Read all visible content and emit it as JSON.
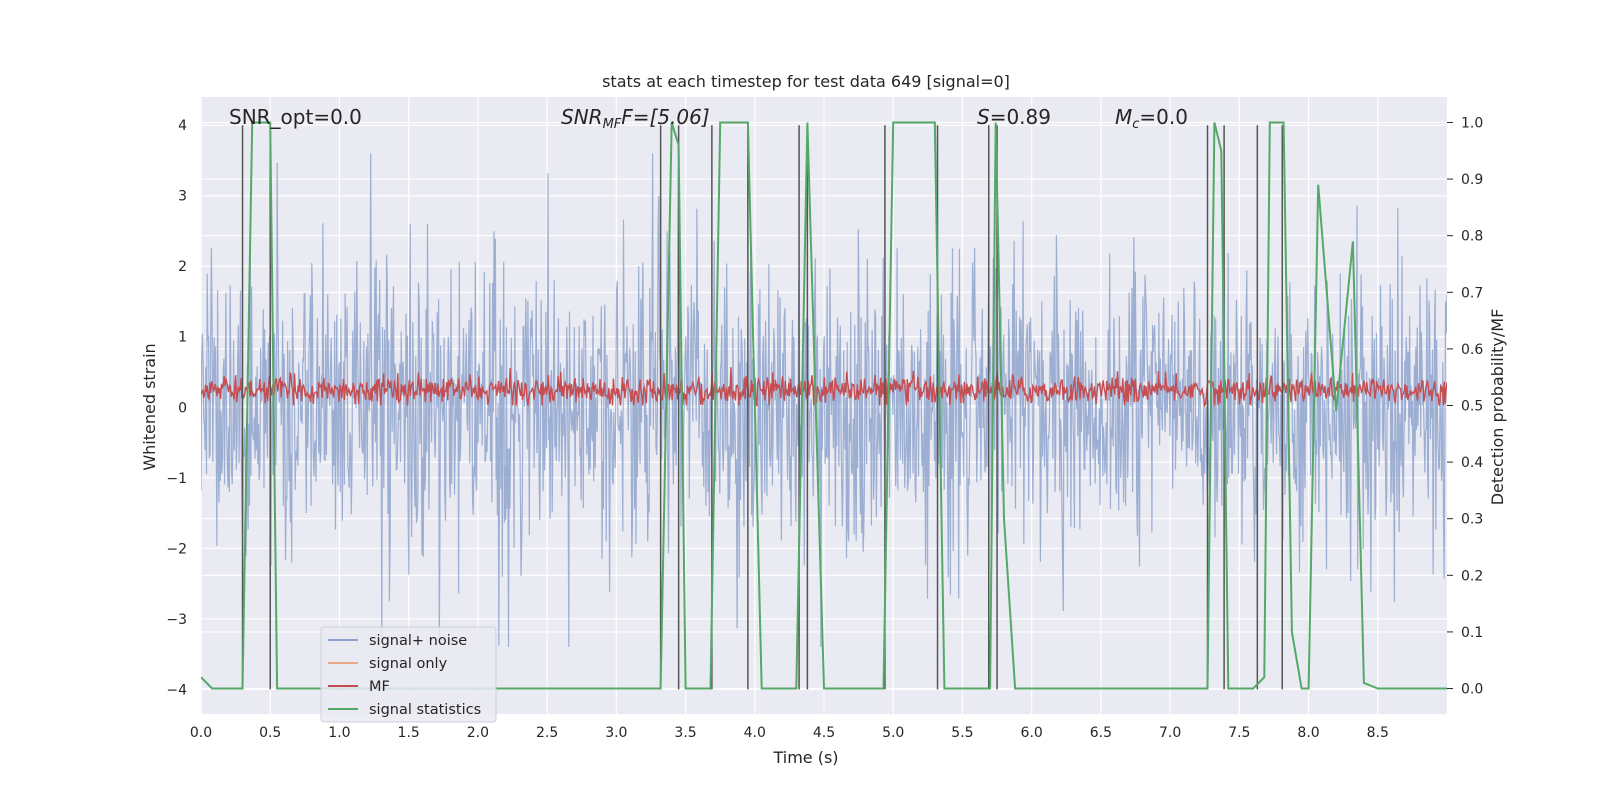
{
  "chart_data": {
    "type": "line",
    "title": "stats at each timestep for test data 649 [signal=0]",
    "xlabel": "Time (s)",
    "ylabel": "Whitened strain",
    "ylabel_right": "Detection probability/MF",
    "xlim": [
      0,
      9.0
    ],
    "ylim": [
      -4.35,
      4.4
    ],
    "ylim_right": [
      -0.045,
      1.045
    ],
    "x_ticks": [
      0.0,
      0.5,
      1.0,
      1.5,
      2.0,
      2.5,
      3.0,
      3.5,
      4.0,
      4.5,
      5.0,
      5.5,
      6.0,
      6.5,
      7.0,
      7.5,
      8.0,
      8.5
    ],
    "x_tick_labels": [
      "0.0",
      "0.5",
      "1.0",
      "1.5",
      "2.0",
      "2.5",
      "3.0",
      "3.5",
      "4.0",
      "4.5",
      "5.0",
      "5.5",
      "6.0",
      "6.5",
      "7.0",
      "7.5",
      "8.0",
      "8.5"
    ],
    "y_ticks": [
      4,
      3,
      2,
      1,
      0,
      -1,
      -2,
      -3,
      -4
    ],
    "y_tick_labels": [
      "4",
      "3",
      "2",
      "1",
      "0",
      "−1",
      "−2",
      "−3",
      "−4"
    ],
    "y_ticks_right": [
      1.0,
      0.9,
      0.8,
      0.7,
      0.6,
      0.5,
      0.4,
      0.3,
      0.2,
      0.1,
      0.0
    ],
    "y_tick_labels_right": [
      "1.0",
      "0.9",
      "0.8",
      "0.7",
      "0.6",
      "0.5",
      "0.4",
      "0.3",
      "0.2",
      "0.1",
      "0.0"
    ],
    "grid": true,
    "legend_position": "lower-left",
    "annotations": {
      "snr_opt": "SNR_opt=0.0",
      "snr_mf_label": "SNR",
      "snr_mf_sub": "MF",
      "snr_mf_value": "F=[5.06]",
      "s_label": "S",
      "s_value": "=0.89",
      "mc_label": "M",
      "mc_sub": "c",
      "mc_value": "=0.0"
    },
    "series": [
      {
        "name": "signal+ noise",
        "color": "#8ea3cc",
        "axis": "left",
        "note": "dense noise trace, roughly ±2 with spikes to ±3.5",
        "amplitude_range": [
          -3.4,
          3.6
        ]
      },
      {
        "name": "signal only",
        "color": "#e8a98a",
        "axis": "left",
        "values": []
      },
      {
        "name": "MF",
        "color": "#c44e52",
        "axis": "right",
        "note": "matched-filter output fluctuating around 0.53 on the right axis",
        "range_right": [
          0.5,
          0.6
        ]
      },
      {
        "name": "signal statistics",
        "color": "#55a868",
        "axis": "right",
        "points": [
          [
            0.0,
            0.02
          ],
          [
            0.08,
            0.0
          ],
          [
            0.15,
            0.0
          ],
          [
            0.3,
            0.0
          ],
          [
            0.37,
            1.0
          ],
          [
            0.5,
            1.0
          ],
          [
            0.55,
            0.0
          ],
          [
            3.32,
            0.0
          ],
          [
            3.4,
            1.0
          ],
          [
            3.45,
            0.96
          ],
          [
            3.5,
            0.0
          ],
          [
            3.68,
            0.0
          ],
          [
            3.75,
            1.0
          ],
          [
            3.95,
            1.0
          ],
          [
            4.05,
            0.0
          ],
          [
            4.3,
            0.0
          ],
          [
            4.38,
            1.0
          ],
          [
            4.5,
            0.0
          ],
          [
            4.93,
            0.0
          ],
          [
            5.0,
            1.0
          ],
          [
            5.3,
            1.0
          ],
          [
            5.37,
            0.0
          ],
          [
            5.7,
            0.0
          ],
          [
            5.74,
            1.0
          ],
          [
            5.8,
            0.3
          ],
          [
            5.88,
            0.0
          ],
          [
            7.27,
            0.0
          ],
          [
            7.32,
            1.0
          ],
          [
            7.37,
            0.95
          ],
          [
            7.42,
            0.0
          ],
          [
            7.6,
            0.0
          ],
          [
            7.68,
            0.02
          ],
          [
            7.72,
            1.0
          ],
          [
            7.82,
            1.0
          ],
          [
            7.88,
            0.1
          ],
          [
            7.95,
            0.0
          ],
          [
            8.0,
            0.0
          ],
          [
            8.07,
            0.89
          ],
          [
            8.2,
            0.49
          ],
          [
            8.32,
            0.79
          ],
          [
            8.4,
            0.01
          ],
          [
            8.5,
            0.0
          ],
          [
            9.0,
            0.0
          ]
        ]
      }
    ],
    "vertical_lines_x": [
      0.3,
      0.5,
      3.32,
      3.45,
      3.69,
      3.95,
      4.32,
      4.38,
      4.94,
      5.32,
      5.69,
      5.75,
      7.27,
      7.39,
      7.63,
      7.81
    ]
  }
}
